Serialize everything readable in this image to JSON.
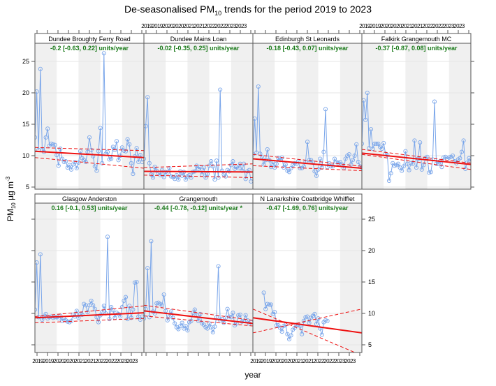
{
  "chart_data": {
    "type": "line",
    "title": "De-seasonalised PM10 trends for the period 2019 to 2023",
    "title_main": "De-seasonalised PM",
    "title_sub": "10",
    "title_rest": " trends for the period 2019 to 2023",
    "xlabel": "year",
    "ylabel_main": "PM",
    "ylabel_sub": "10",
    "ylabel_rest": " µg m",
    "ylabel_sup": "-3",
    "ylim": [
      4,
      27.5
    ],
    "xlim": [
      2019,
      2024
    ],
    "yticks": [
      5,
      10,
      15,
      20,
      25
    ],
    "xtick_labels": [
      "2019",
      "2019",
      "2020",
      "2020",
      "2021",
      "2021",
      "2022",
      "2022",
      "2023",
      "2023"
    ],
    "layout": {
      "columns": 4,
      "rows": 2
    },
    "colors": {
      "series": "#7aa6ea",
      "trend": "#ee1111",
      "trend_text": "#1a7a1a",
      "band": "#f0f0f0"
    },
    "panels": [
      {
        "site": "Dundee Broughty Ferry Road",
        "trend_label": "-0.2 [-0.63, 0.22] units/year",
        "start": 2019.0,
        "values": [
          12.9,
          20.2,
          10.9,
          23.8,
          10.9,
          10.6,
          12.9,
          14.3,
          11.6,
          11.9,
          11.8,
          11.7,
          10.1,
          8.4,
          11.1,
          9.5,
          9.0,
          9.1,
          8.1,
          8.5,
          7.8,
          8.6,
          9.0,
          8.0,
          8.9,
          10.7,
          9.6,
          9.3,
          9.0,
          10.6,
          12.9,
          10.9,
          9.9,
          8.3,
          7.6,
          10.7,
          14.4,
          8.8,
          26.3,
          10.3,
          10.6,
          9.4,
          9.5,
          11.4,
          10.9,
          12.3,
          9.3,
          10.0,
          11.3,
          10.8,
          10.7,
          12.6,
          11.8,
          8.8,
          7.1,
          9.9,
          11.2,
          9.0,
          10.1,
          9.0
        ],
        "trend": {
          "start": 10.7,
          "end": 9.7
        },
        "lower": {
          "start": 9.7,
          "end": 8.0
        },
        "upper": {
          "start": 11.3,
          "end": 10.8
        }
      },
      {
        "site": "Dundee Mains Loan",
        "trend_label": "-0.02 [-0.35, 0.25] units/year",
        "start": 2019.0,
        "values": [
          9.5,
          14.7,
          19.3,
          8.8,
          7.0,
          6.5,
          8.2,
          7.6,
          7.2,
          6.9,
          7.7,
          6.6,
          7.4,
          7.3,
          8.0,
          6.7,
          6.6,
          6.3,
          6.9,
          6.2,
          7.5,
          6.8,
          7.4,
          6.2,
          6.7,
          6.9,
          6.5,
          7.4,
          7.5,
          8.4,
          7.9,
          8.2,
          7.0,
          8.1,
          6.5,
          7.1,
          8.4,
          9.1,
          8.3,
          6.2,
          9.2,
          6.5,
          20.5,
          7.6,
          7.0,
          6.7,
          7.7,
          7.5,
          8.5,
          9.1,
          7.9,
          8.2,
          8.0,
          8.7,
          7.6,
          8.7,
          6.3,
          7.5,
          7.7,
          5.9
        ],
        "trend": {
          "start": 7.5,
          "end": 7.4
        },
        "lower": {
          "start": 6.9,
          "end": 6.5
        },
        "upper": {
          "start": 8.1,
          "end": 8.7
        }
      },
      {
        "site": "Edinburgh St Leonards",
        "trend_label": "-0.18 [-0.43, 0.07] units/year",
        "start": 2019.0,
        "values": [
          10.2,
          15.9,
          10.5,
          21.0,
          10.3,
          9.8,
          8.6,
          9.3,
          11.0,
          9.3,
          8.2,
          9.0,
          8.1,
          8.7,
          9.6,
          9.3,
          9.7,
          8.1,
          8.6,
          7.6,
          7.4,
          8.0,
          8.5,
          8.8,
          8.7,
          9.1,
          8.0,
          8.0,
          8.3,
          9.0,
          12.2,
          9.3,
          9.3,
          8.9,
          7.5,
          6.8,
          7.8,
          9.5,
          8.1,
          10.6,
          17.4,
          8.2,
          8.8,
          8.3,
          8.3,
          9.5,
          9.0,
          8.8,
          9.0,
          8.6,
          8.0,
          9.5,
          10.0,
          10.2,
          8.6,
          9.3,
          10.0,
          11.8,
          9.0,
          8.3,
          8.1,
          7.7,
          8.1,
          9.4,
          8.3
        ],
        "trend": {
          "start": 9.5,
          "end": 8.0
        },
        "lower": {
          "start": 8.4,
          "end": 7.6
        },
        "upper": {
          "start": 10.2,
          "end": 8.3
        }
      },
      {
        "site": "Falkirk Grangemouth MC",
        "trend_label": "-0.37 [-0.87, 0.08] units/year",
        "start": 2019.0,
        "values": [
          11.9,
          18.8,
          15.7,
          20.0,
          11.2,
          14.2,
          11.1,
          11.9,
          11.9,
          11.9,
          11.4,
          11.1,
          12.0,
          10.3,
          10.1,
          6.0,
          7.2,
          8.8,
          8.4,
          8.5,
          8.7,
          8.1,
          7.6,
          8.3,
          10.7,
          8.7,
          7.7,
          8.8,
          8.7,
          12.4,
          8.1,
          9.5,
          12.1,
          7.8,
          8.5,
          9.6,
          9.8,
          7.3,
          7.4,
          9.4,
          18.6,
          8.7,
          8.7,
          9.1,
          8.2,
          9.7,
          9.8,
          9.5,
          9.7,
          9.8,
          10.0,
          9.1,
          8.8,
          9.4,
          9.6,
          10.6,
          12.4,
          7.9,
          8.9,
          9.6,
          9.1,
          8.0,
          9.0,
          7.8,
          9.5,
          10.0,
          8.7
        ],
        "trend": {
          "start": 10.4,
          "end": 8.6
        },
        "lower": {
          "start": 10.2,
          "end": 7.8
        },
        "upper": {
          "start": 11.0,
          "end": 8.8
        }
      },
      {
        "site": "Glasgow Anderston",
        "trend_label": "0.16 [-0.1, 0.53] units/year",
        "start": 2019.0,
        "values": [
          10.6,
          18.1,
          9.4,
          19.4,
          9.0,
          9.5,
          9.9,
          9.2,
          9.4,
          9.5,
          9.3,
          9.4,
          9.4,
          9.2,
          9.6,
          8.8,
          9.2,
          8.9,
          8.7,
          8.6,
          8.8,
          9.8,
          9.5,
          10.4,
          9.3,
          9.9,
          9.8,
          11.5,
          11.3,
          10.2,
          11.3,
          12.0,
          11.3,
          10.7,
          9.4,
          8.6,
          9.7,
          10.2,
          11.2,
          10.0,
          22.2,
          9.1,
          11.0,
          10.5,
          9.3,
          10.1,
          9.9,
          9.5,
          11.0,
          12.0,
          12.6,
          9.1,
          11.2,
          9.3,
          10.6,
          14.9,
          15.0,
          9.5,
          9.0,
          9.5
        ],
        "trend": {
          "start": 9.3,
          "end": 10.1
        },
        "lower": {
          "start": 8.5,
          "end": 9.2
        },
        "upper": {
          "start": 9.5,
          "end": 11.2
        }
      },
      {
        "site": "Grangemouth",
        "trend_label": "-0.44 [-0.78, -0.12] units/year *",
        "start": 2019.0,
        "values": [
          9.2,
          10.7,
          17.2,
          9.4,
          21.5,
          10.3,
          10.0,
          11.6,
          11.7,
          11.5,
          11.3,
          13.0,
          10.4,
          8.9,
          9.5,
          10.3,
          9.3,
          8.4,
          7.8,
          7.5,
          8.0,
          8.5,
          7.6,
          8.0,
          7.3,
          8.6,
          8.8,
          10.1,
          10.6,
          9.7,
          8.8,
          9.9,
          8.4,
          8.2,
          7.8,
          7.6,
          8.4,
          7.8,
          7.0,
          7.9,
          9.4,
          17.5,
          8.9,
          9.1,
          8.5,
          9.3,
          10.7,
          9.5,
          9.4,
          10.1,
          8.1,
          8.4,
          9.7,
          9.8,
          8.7,
          8.8,
          9.7,
          8.9,
          8.4,
          8.6
        ],
        "trend": {
          "start": 10.4,
          "end": 8.4
        },
        "lower": {
          "start": 9.6,
          "end": 8.0
        },
        "upper": {
          "start": 11.3,
          "end": 8.9
        }
      },
      {
        "site": "N Lanarkshire Coatbridge Whifflet",
        "trend_label": "-0.47 [-1.69, 0.76] units/year",
        "start": 2019.5,
        "values": [
          13.3,
          10.7,
          11.5,
          11.4,
          11.4,
          9.9,
          10.2,
          8.1,
          8.1,
          7.7,
          7.1,
          8.0,
          8.2,
          6.7,
          5.9,
          6.5,
          7.4,
          7.7,
          8.2,
          8.2,
          8.0,
          6.7,
          8.8,
          9.4,
          9.5,
          8.5,
          9.3,
          9.6,
          9.9,
          8.3,
          9.2,
          7.6,
          6.6,
          8.6,
          8.9,
          8.8
        ],
        "trend": {
          "start": 9.3,
          "end": 6.9
        },
        "lower": {
          "start": 10.7,
          "end": 3.3
        },
        "upper": {
          "start": 6.9,
          "end": 10.7
        }
      }
    ]
  }
}
